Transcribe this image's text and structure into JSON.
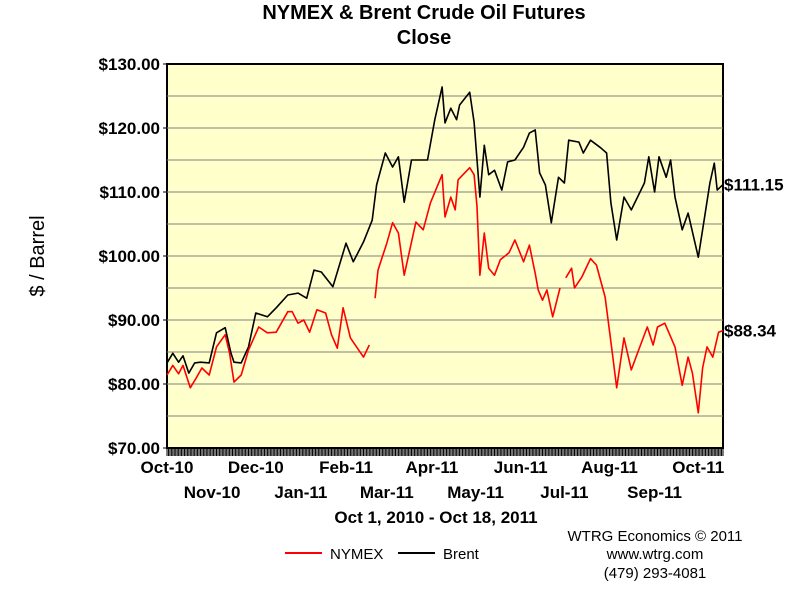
{
  "chart_data": {
    "type": "line",
    "title": "NYMEX & Brent Crude Oil Futures",
    "subtitle": "Close",
    "ylabel": "$ / Barrel",
    "xlabel": "Oct 1, 2010 - Oct 18, 2011",
    "xlim": [
      "2010-10-01",
      "2011-10-18"
    ],
    "ylim": [
      70,
      130
    ],
    "y_ticks": [
      "$70.00",
      "$80.00",
      "$90.00",
      "$100.00",
      "$110.00",
      "$120.00",
      "$130.00"
    ],
    "y_tick_values": [
      70,
      80,
      90,
      100,
      110,
      120,
      130
    ],
    "grid": "horizontal every $5",
    "x_ticks": [
      {
        "label": "Oct-10",
        "date": "2010-10-01"
      },
      {
        "label": "Nov-10",
        "date": "2010-11-01"
      },
      {
        "label": "Dec-10",
        "date": "2010-12-01"
      },
      {
        "label": "Jan-11",
        "date": "2011-01-01"
      },
      {
        "label": "Feb-11",
        "date": "2011-02-01"
      },
      {
        "label": "Mar-11",
        "date": "2011-03-01"
      },
      {
        "label": "Apr-11",
        "date": "2011-04-01"
      },
      {
        "label": "May-11",
        "date": "2011-05-01"
      },
      {
        "label": "Jun-11",
        "date": "2011-06-01"
      },
      {
        "label": "Jul-11",
        "date": "2011-07-01"
      },
      {
        "label": "Aug-11",
        "date": "2011-08-01"
      },
      {
        "label": "Sep-11",
        "date": "2011-09-01"
      },
      {
        "label": "Oct-11",
        "date": "2011-10-01"
      }
    ],
    "plot_background": "#FFFFCC",
    "legend_position": "bottom",
    "series": [
      {
        "name": "NYMEX",
        "color": "#FF0000",
        "end_label": "$88.34",
        "segments": [
          [
            [
              "2010-10-01",
              81.4
            ],
            [
              "2010-10-05",
              82.9
            ],
            [
              "2010-10-09",
              81.6
            ],
            [
              "2010-10-12",
              82.9
            ],
            [
              "2010-10-17",
              79.4
            ],
            [
              "2010-10-21",
              80.9
            ],
            [
              "2010-10-25",
              82.5
            ],
            [
              "2010-10-30",
              81.4
            ],
            [
              "2010-11-04",
              85.8
            ],
            [
              "2010-11-10",
              87.7
            ],
            [
              "2010-11-13",
              84.8
            ],
            [
              "2010-11-16",
              80.3
            ],
            [
              "2010-11-21",
              81.4
            ],
            [
              "2010-11-26",
              85.3
            ],
            [
              "2010-12-03",
              88.9
            ],
            [
              "2010-12-09",
              88.0
            ],
            [
              "2010-12-15",
              88.1
            ],
            [
              "2010-12-23",
              91.3
            ],
            [
              "2010-12-26",
              91.3
            ],
            [
              "2010-12-30",
              89.5
            ],
            [
              "2011-01-03",
              90.0
            ],
            [
              "2011-01-07",
              88.1
            ],
            [
              "2011-01-12",
              91.6
            ],
            [
              "2011-01-18",
              91.1
            ],
            [
              "2011-01-22",
              87.7
            ],
            [
              "2011-01-26",
              85.6
            ],
            [
              "2011-01-30",
              91.9
            ],
            [
              "2011-02-04",
              87.2
            ],
            [
              "2011-02-13",
              84.2
            ],
            [
              "2011-02-17",
              86.1
            ]
          ],
          [
            [
              "2011-02-21",
              93.4
            ],
            [
              "2011-02-23",
              97.8
            ],
            [
              "2011-03-01",
              102.0
            ],
            [
              "2011-03-05",
              105.2
            ],
            [
              "2011-03-09",
              103.6
            ],
            [
              "2011-03-13",
              97.0
            ],
            [
              "2011-03-21",
              105.3
            ],
            [
              "2011-03-26",
              104.1
            ],
            [
              "2011-03-31",
              108.3
            ],
            [
              "2011-04-08",
              112.7
            ],
            [
              "2011-04-10",
              106.1
            ],
            [
              "2011-04-14",
              109.2
            ],
            [
              "2011-04-17",
              107.2
            ],
            [
              "2011-04-19",
              111.9
            ],
            [
              "2011-04-27",
              113.8
            ],
            [
              "2011-04-30",
              112.7
            ],
            [
              "2011-05-02",
              107.7
            ],
            [
              "2011-05-04",
              97.0
            ],
            [
              "2011-05-07",
              103.6
            ],
            [
              "2011-05-10",
              98.1
            ],
            [
              "2011-05-14",
              97.0
            ],
            [
              "2011-05-18",
              99.4
            ],
            [
              "2011-05-24",
              100.5
            ],
            [
              "2011-05-28",
              102.5
            ],
            [
              "2011-06-03",
              99.1
            ],
            [
              "2011-06-07",
              101.7
            ],
            [
              "2011-06-11",
              97.3
            ],
            [
              "2011-06-13",
              94.7
            ],
            [
              "2011-06-16",
              93.1
            ],
            [
              "2011-06-19",
              94.7
            ],
            [
              "2011-06-23",
              90.5
            ],
            [
              "2011-06-28",
              95.0
            ]
          ],
          [
            [
              "2011-07-02",
              96.6
            ],
            [
              "2011-07-06",
              98.1
            ],
            [
              "2011-07-08",
              95.0
            ],
            [
              "2011-07-13",
              96.7
            ],
            [
              "2011-07-19",
              99.6
            ],
            [
              "2011-07-23",
              98.6
            ],
            [
              "2011-07-29",
              93.6
            ],
            [
              "2011-08-02",
              86.6
            ],
            [
              "2011-08-06",
              79.4
            ],
            [
              "2011-08-11",
              87.2
            ],
            [
              "2011-08-16",
              82.2
            ],
            [
              "2011-08-21",
              85.3
            ],
            [
              "2011-08-27",
              88.9
            ],
            [
              "2011-08-31",
              86.1
            ],
            [
              "2011-09-03",
              88.9
            ],
            [
              "2011-09-08",
              89.5
            ],
            [
              "2011-09-15",
              85.8
            ],
            [
              "2011-09-20",
              79.8
            ],
            [
              "2011-09-24",
              84.2
            ],
            [
              "2011-09-27",
              81.7
            ],
            [
              "2011-10-01",
              75.5
            ],
            [
              "2011-10-04",
              82.5
            ],
            [
              "2011-10-07",
              85.8
            ],
            [
              "2011-10-11",
              84.2
            ],
            [
              "2011-10-15",
              88.1
            ],
            [
              "2011-10-18",
              88.34
            ]
          ]
        ]
      },
      {
        "name": "Brent",
        "color": "#000000",
        "end_label": "$111.15",
        "segments": [
          [
            [
              "2010-10-01",
              83.3
            ],
            [
              "2010-10-05",
              84.8
            ],
            [
              "2010-10-09",
              83.4
            ],
            [
              "2010-10-12",
              84.4
            ],
            [
              "2010-10-16",
              81.7
            ],
            [
              "2010-10-20",
              83.3
            ],
            [
              "2010-10-24",
              83.4
            ],
            [
              "2010-10-30",
              83.3
            ],
            [
              "2010-11-04",
              88.0
            ],
            [
              "2010-11-10",
              88.8
            ],
            [
              "2010-11-14",
              84.8
            ],
            [
              "2010-11-16",
              83.4
            ],
            [
              "2010-11-21",
              83.3
            ],
            [
              "2010-11-26",
              85.8
            ],
            [
              "2010-12-01",
              91.1
            ],
            [
              "2010-12-09",
              90.5
            ],
            [
              "2010-12-15",
              91.9
            ],
            [
              "2010-12-23",
              93.9
            ],
            [
              "2010-12-30",
              94.2
            ],
            [
              "2011-01-05",
              93.4
            ],
            [
              "2011-01-10",
              97.8
            ],
            [
              "2011-01-15",
              97.5
            ],
            [
              "2011-01-23",
              95.2
            ],
            [
              "2011-02-01",
              102.0
            ],
            [
              "2011-02-06",
              99.1
            ],
            [
              "2011-02-13",
              102.2
            ],
            [
              "2011-02-19",
              105.6
            ],
            [
              "2011-02-22",
              111.1
            ],
            [
              "2011-02-28",
              116.1
            ],
            [
              "2011-03-05",
              113.9
            ],
            [
              "2011-03-09",
              115.5
            ],
            [
              "2011-03-13",
              108.4
            ],
            [
              "2011-03-18",
              115.0
            ],
            [
              "2011-03-29",
              115.0
            ],
            [
              "2011-04-03",
              121.3
            ],
            [
              "2011-04-08",
              126.4
            ],
            [
              "2011-04-10",
              120.8
            ],
            [
              "2011-04-14",
              123.1
            ],
            [
              "2011-04-18",
              121.3
            ],
            [
              "2011-04-20",
              123.6
            ],
            [
              "2011-04-27",
              125.6
            ],
            [
              "2011-04-30",
              120.9
            ],
            [
              "2011-05-04",
              109.2
            ],
            [
              "2011-05-07",
              117.3
            ],
            [
              "2011-05-10",
              112.7
            ],
            [
              "2011-05-14",
              113.4
            ],
            [
              "2011-05-19",
              110.3
            ],
            [
              "2011-05-23",
              114.7
            ],
            [
              "2011-05-28",
              115.0
            ],
            [
              "2011-06-03",
              117.0
            ],
            [
              "2011-06-07",
              119.2
            ],
            [
              "2011-06-11",
              119.7
            ],
            [
              "2011-06-14",
              113.0
            ],
            [
              "2011-06-18",
              111.1
            ],
            [
              "2011-06-22",
              105.2
            ],
            [
              "2011-06-27",
              112.3
            ],
            [
              "2011-07-01",
              111.4
            ],
            [
              "2011-07-04",
              118.1
            ],
            [
              "2011-07-11",
              117.8
            ],
            [
              "2011-07-14",
              116.1
            ],
            [
              "2011-07-19",
              118.1
            ],
            [
              "2011-07-26",
              116.9
            ],
            [
              "2011-07-30",
              116.1
            ],
            [
              "2011-08-02",
              108.3
            ],
            [
              "2011-08-06",
              102.5
            ],
            [
              "2011-08-11",
              109.2
            ],
            [
              "2011-08-16",
              107.2
            ],
            [
              "2011-08-25",
              111.4
            ],
            [
              "2011-08-28",
              115.5
            ],
            [
              "2011-09-01",
              110.0
            ],
            [
              "2011-09-04",
              115.5
            ],
            [
              "2011-09-09",
              112.3
            ],
            [
              "2011-09-12",
              115.0
            ],
            [
              "2011-09-15",
              109.2
            ],
            [
              "2011-09-20",
              104.1
            ],
            [
              "2011-09-24",
              106.7
            ],
            [
              "2011-10-01",
              99.8
            ],
            [
              "2011-10-05",
              105.6
            ],
            [
              "2011-10-09",
              111.4
            ],
            [
              "2011-10-12",
              114.5
            ],
            [
              "2011-10-14",
              110.3
            ],
            [
              "2011-10-18",
              111.15
            ]
          ]
        ]
      }
    ]
  },
  "credits": {
    "line1": "WTRG Economics © 2011",
    "line2": "www.wtrg.com",
    "line3": "(479) 293-4081"
  }
}
